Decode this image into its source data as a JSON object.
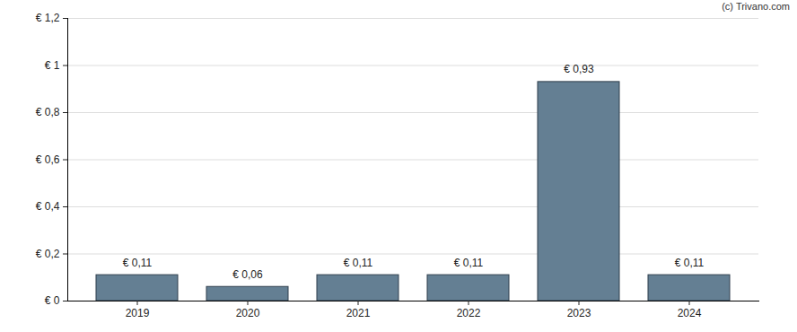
{
  "chart_data": {
    "type": "bar",
    "annotations": [
      "(c) Trivano.com"
    ],
    "categories": [
      "2019",
      "2020",
      "2021",
      "2022",
      "2023",
      "2024"
    ],
    "values": [
      0.11,
      0.06,
      0.11,
      0.11,
      0.93,
      0.11
    ],
    "value_labels": [
      "€ 0,11",
      "€ 0,06",
      "€ 0,11",
      "€ 0,11",
      "€ 0,93",
      "€ 0,11"
    ],
    "data_labels": true,
    "color": "#647f93",
    "ylim": [
      0,
      1.2
    ],
    "yticks": [
      {
        "value": 0,
        "label": "€ 0"
      },
      {
        "value": 0.2,
        "label": "€ 0,2"
      },
      {
        "value": 0.4,
        "label": "€ 0,4"
      },
      {
        "value": 0.6,
        "label": "€ 0,6"
      },
      {
        "value": 0.8,
        "label": "€ 0,8"
      },
      {
        "value": 1,
        "label": "€ 1"
      },
      {
        "value": 1.2,
        "label": "€ 1,2"
      }
    ],
    "grid": true
  }
}
